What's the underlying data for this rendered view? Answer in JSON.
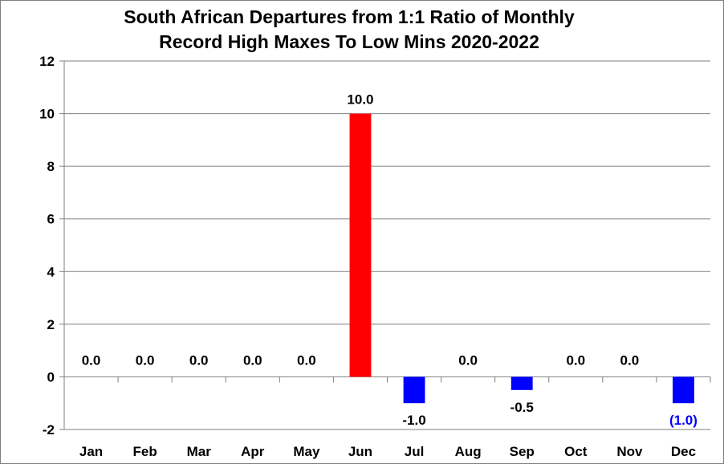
{
  "chart_data": {
    "type": "bar",
    "title": [
      "South African Departures from 1:1 Ratio of Monthly",
      "Record High Maxes To Low Mins 2020-2022"
    ],
    "categories": [
      "Jan",
      "Feb",
      "Mar",
      "Apr",
      "May",
      "Jun",
      "Jul",
      "Aug",
      "Sep",
      "Oct",
      "Nov",
      "Dec"
    ],
    "values": [
      0.0,
      0.0,
      0.0,
      0.0,
      0.0,
      10.0,
      -1.0,
      0.0,
      -0.5,
      0.0,
      0.0,
      -1.0
    ],
    "data_labels": [
      "0.0",
      "0.0",
      "0.0",
      "0.0",
      "0.0",
      "10.0",
      "-1.0",
      "0.0",
      "-0.5",
      "0.0",
      "0.0",
      "(1.0)"
    ],
    "bar_colors": [
      "#ff0000",
      "#ff0000",
      "#ff0000",
      "#ff0000",
      "#ff0000",
      "#ff0000",
      "#0000ff",
      "#ff0000",
      "#0000ff",
      "#ff0000",
      "#ff0000",
      "#0000ff"
    ],
    "label_colors": [
      "#000000",
      "#000000",
      "#000000",
      "#000000",
      "#000000",
      "#000000",
      "#000000",
      "#000000",
      "#000000",
      "#000000",
      "#000000",
      "#0000ff"
    ],
    "yticks": [
      -2,
      0,
      2,
      4,
      6,
      8,
      10,
      12
    ],
    "ylim": [
      -2,
      12
    ],
    "grid": true,
    "legend": "none",
    "xlabel": "",
    "ylabel": ""
  }
}
